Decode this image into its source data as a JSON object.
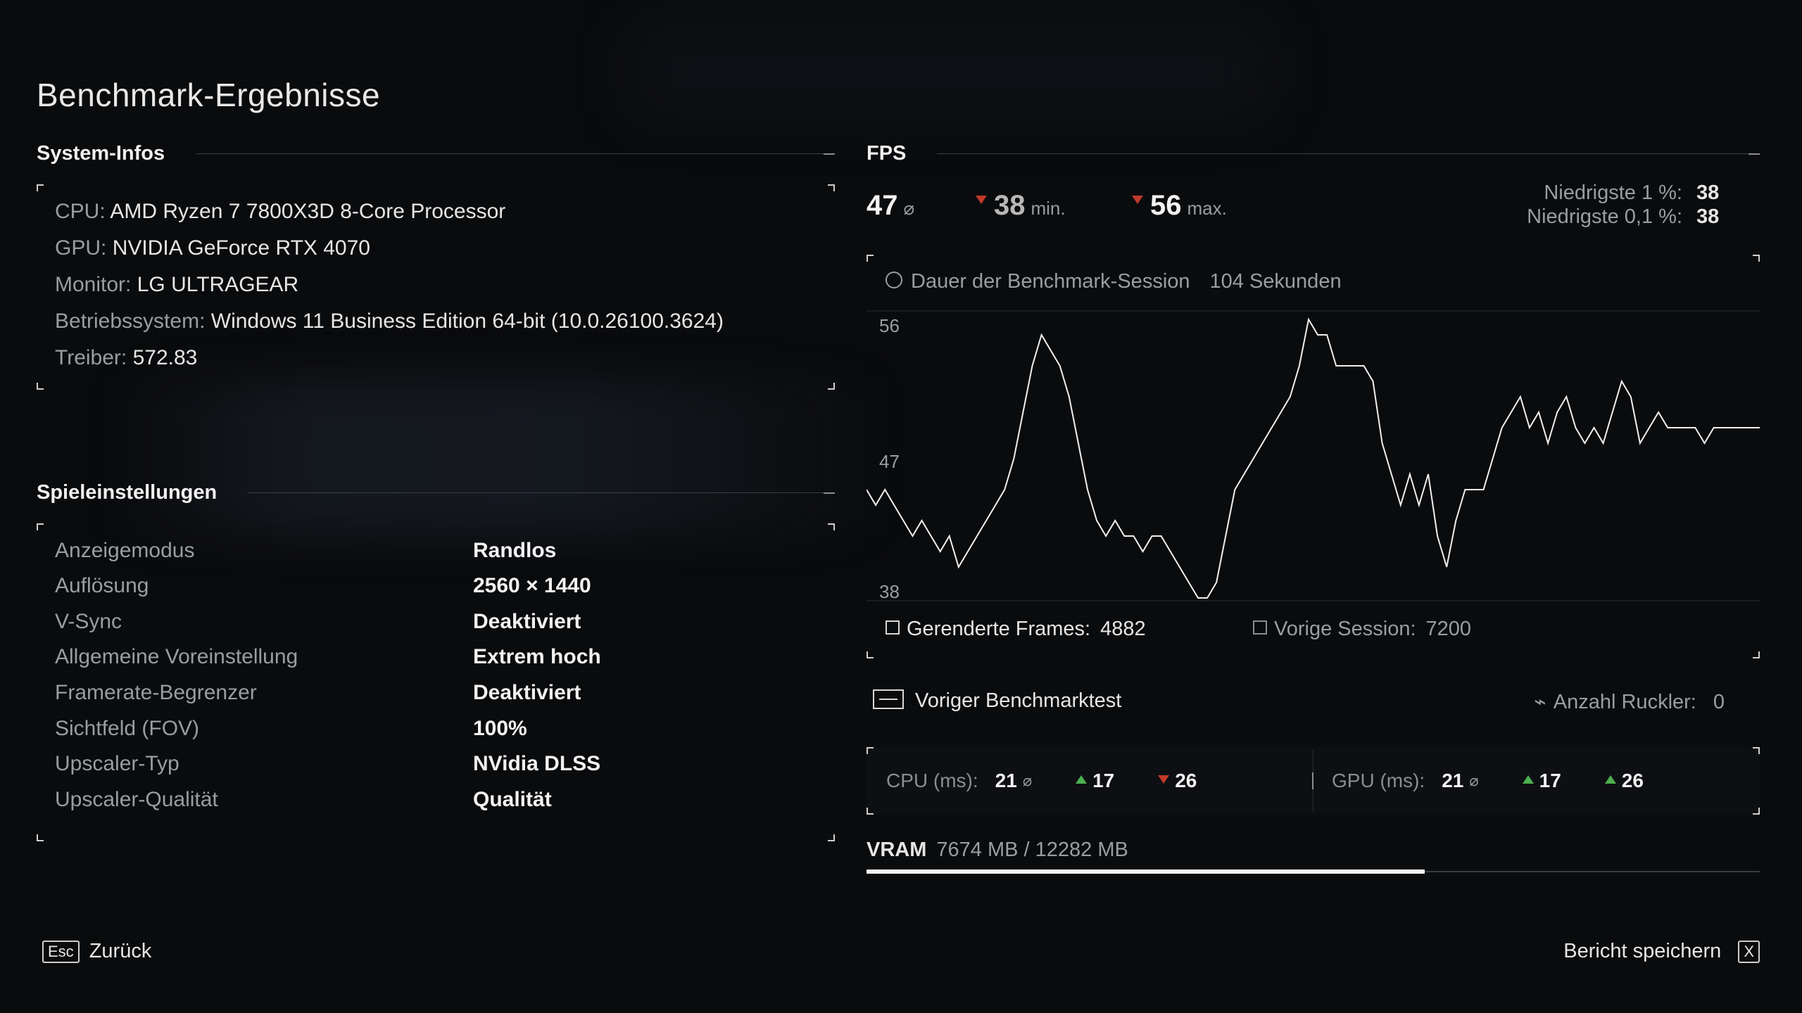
{
  "page_title": "Benchmark-Ergebnisse",
  "system": {
    "heading": "System-Infos",
    "rows": [
      {
        "key": "CPU:",
        "value": "AMD Ryzen 7 7800X3D 8-Core Processor"
      },
      {
        "key": "GPU:",
        "value": "NVIDIA GeForce RTX 4070"
      },
      {
        "key": "Monitor:",
        "value": "LG ULTRAGEAR"
      },
      {
        "key": "Betriebssystem:",
        "value": "Windows 11 Business Edition 64-bit (10.0.26100.3624)"
      },
      {
        "key": "Treiber:",
        "value": "572.83"
      }
    ]
  },
  "settings": {
    "heading": "Spieleinstellungen",
    "rows": [
      {
        "key": "Anzeigemodus",
        "value": "Randlos"
      },
      {
        "key": "Auflösung",
        "value": "2560 × 1440"
      },
      {
        "key": "V-Sync",
        "value": "Deaktiviert"
      },
      {
        "key": "Allgemeine Voreinstellung",
        "value": "Extrem hoch"
      },
      {
        "key": "Framerate-Begrenzer",
        "value": "Deaktiviert"
      },
      {
        "key": "Sichtfeld (FOV)",
        "value": "100%"
      },
      {
        "key": "Upscaler-Typ",
        "value": "NVidia DLSS"
      },
      {
        "key": "Upscaler-Qualität",
        "value": "Qualität"
      }
    ]
  },
  "fps": {
    "heading": "FPS",
    "avg": "47",
    "avg_symbol": "⌀",
    "min": "38",
    "min_label": "min.",
    "max": "56",
    "max_label": "max.",
    "low1_label": "Niedrigste 1 %:",
    "low1_value": "38",
    "low01_label": "Niedrigste 0,1 %:",
    "low01_value": "38",
    "duration_label": "Dauer der Benchmark-Session",
    "duration_value": "104 Sekunden",
    "rendered_label": "Gerenderte Frames:",
    "rendered_value": "4882",
    "prev_label": "Vorige Session:",
    "prev_value": "7200"
  },
  "chart_data": {
    "type": "line",
    "yticks": [
      "56",
      "47",
      "38"
    ],
    "ylim": [
      38,
      56
    ],
    "xlabel": "",
    "ylabel": "",
    "series": [
      {
        "values": [
          45,
          44,
          45,
          44,
          43,
          42,
          43,
          42,
          41,
          42,
          40,
          41,
          42,
          43,
          44,
          45,
          47,
          50,
          53,
          55,
          54,
          53,
          51,
          48,
          45,
          43,
          42,
          43,
          42,
          42,
          41,
          42,
          42,
          41,
          40,
          39,
          38,
          38,
          39,
          42,
          45,
          46,
          47,
          48,
          49,
          50,
          51,
          53,
          56,
          55,
          55,
          53,
          53,
          53,
          53,
          52,
          48,
          46,
          44,
          46,
          44,
          46,
          42,
          40,
          43,
          45,
          45,
          45,
          47,
          49,
          50,
          51,
          49,
          50,
          48,
          50,
          51,
          49,
          48,
          49,
          48,
          50,
          52,
          51,
          48,
          49,
          50,
          49,
          49,
          49,
          49,
          48,
          49,
          49,
          49,
          49,
          49,
          49
        ]
      }
    ]
  },
  "bench": {
    "prev_label": "Voriger Benchmarktest",
    "stutter_label": "Anzahl Ruckler:",
    "stutter_value": "0"
  },
  "cpu_ms": {
    "label": "CPU (ms):",
    "avg": "21",
    "avg_symbol": "⌀",
    "a": "17",
    "b": "26"
  },
  "gpu_ms": {
    "label": "GPU (ms):",
    "avg": "21",
    "avg_symbol": "⌀",
    "a": "17",
    "b": "26"
  },
  "vram": {
    "label": "VRAM",
    "value": "7674 MB / 12282 MB",
    "used_fraction": 0.6248
  },
  "footer": {
    "back_key": "Esc",
    "back_label": "Zurück",
    "save_label": "Bericht speichern",
    "save_key": "X"
  },
  "colors": {
    "accent_up": "#4caf50",
    "accent_down": "#c0392b"
  }
}
